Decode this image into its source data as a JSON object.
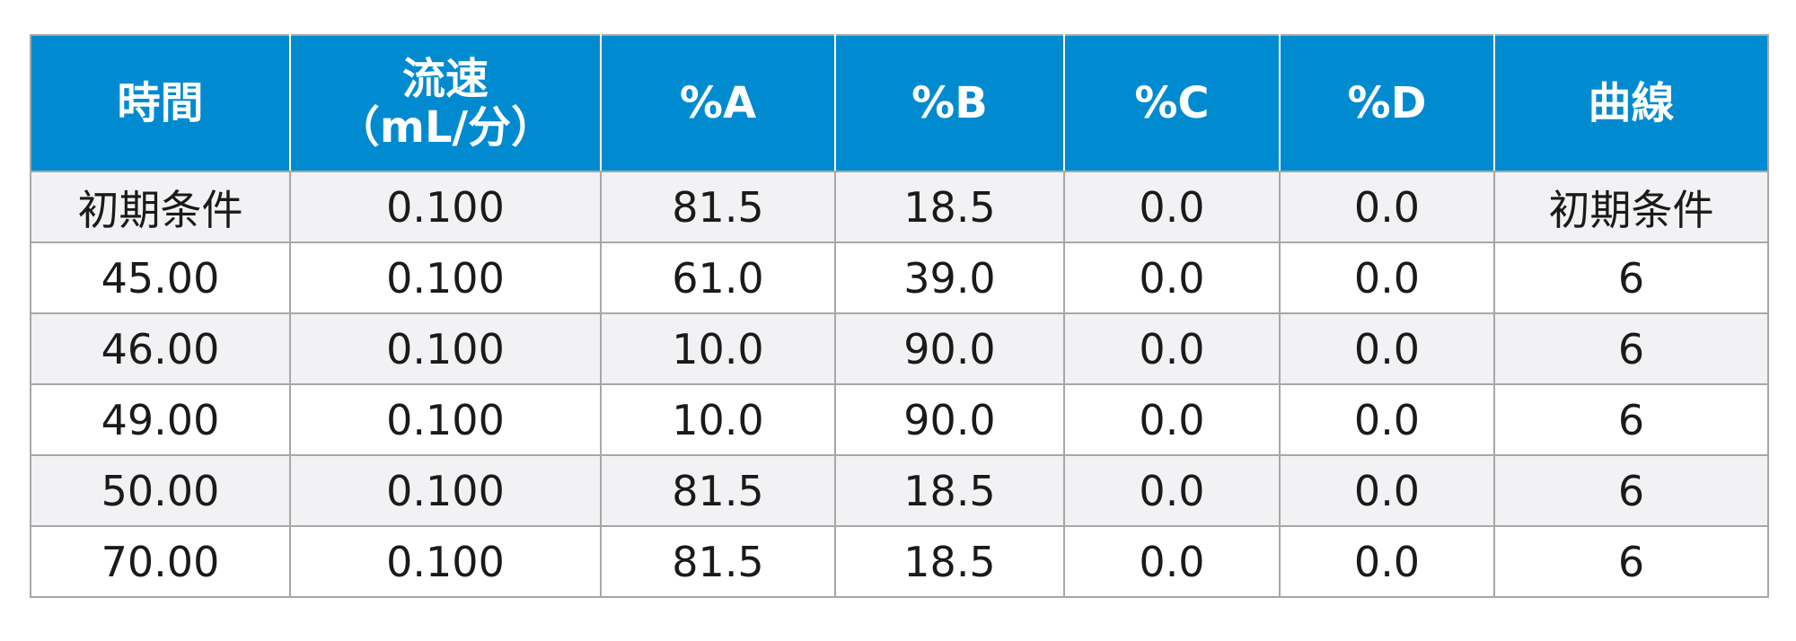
{
  "table": {
    "headers": {
      "time": "時間",
      "flow_line1": "流速",
      "flow_line2": "（mL/分）",
      "a": "%A",
      "b": "%B",
      "c": "%C",
      "d": "%D",
      "curve": "曲線"
    },
    "rows": [
      [
        "初期条件",
        "0.100",
        "81.5",
        "18.5",
        "0.0",
        "0.0",
        "初期条件"
      ],
      [
        "45.00",
        "0.100",
        "61.0",
        "39.0",
        "0.0",
        "0.0",
        "6"
      ],
      [
        "46.00",
        "0.100",
        "10.0",
        "90.0",
        "0.0",
        "0.0",
        "6"
      ],
      [
        "49.00",
        "0.100",
        "10.0",
        "90.0",
        "0.0",
        "0.0",
        "6"
      ],
      [
        "50.00",
        "0.100",
        "81.5",
        "18.5",
        "0.0",
        "0.0",
        "6"
      ],
      [
        "70.00",
        "0.100",
        "81.5",
        "18.5",
        "0.0",
        "0.0",
        "6"
      ]
    ]
  }
}
